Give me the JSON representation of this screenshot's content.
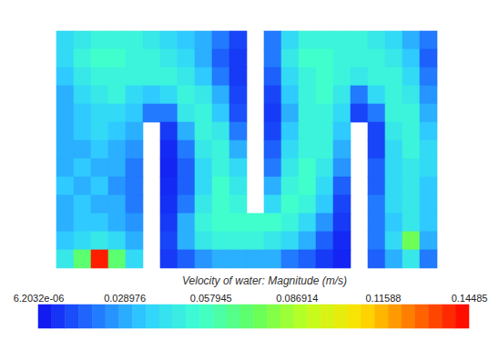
{
  "chart_data": {
    "type": "heatmap",
    "tick_labels": false,
    "z": [
      [
        0.04,
        0.045,
        0.05,
        0.05,
        0.05,
        0.045,
        0.04,
        0.035,
        0.03,
        0.02,
        0.01,
        null,
        0.02,
        0.04,
        0.05,
        0.05,
        0.05,
        0.05,
        0.045,
        0.04,
        0.03,
        0.02
      ],
      [
        0.04,
        0.05,
        0.055,
        0.055,
        0.05,
        0.05,
        0.045,
        0.04,
        0.03,
        0.015,
        0.008,
        null,
        0.02,
        0.045,
        0.055,
        0.055,
        0.05,
        0.05,
        0.05,
        0.045,
        0.035,
        0.015
      ],
      [
        0.035,
        0.045,
        0.05,
        0.05,
        0.05,
        0.05,
        0.05,
        0.045,
        0.035,
        0.02,
        0.008,
        null,
        0.015,
        0.04,
        0.05,
        0.055,
        0.05,
        0.045,
        0.05,
        0.05,
        0.04,
        0.02
      ],
      [
        0.03,
        0.04,
        0.045,
        0.05,
        0.04,
        0.035,
        0.04,
        0.05,
        0.045,
        0.03,
        0.01,
        null,
        0.01,
        0.035,
        0.05,
        0.055,
        0.045,
        0.02,
        0.04,
        0.05,
        0.045,
        0.025
      ],
      [
        0.03,
        0.035,
        0.04,
        0.04,
        0.035,
        0.02,
        0.02,
        0.045,
        0.05,
        0.035,
        0.012,
        null,
        0.008,
        0.03,
        0.05,
        0.05,
        0.04,
        0.01,
        0.02,
        0.05,
        0.05,
        0.03
      ],
      [
        0.03,
        0.035,
        0.04,
        0.035,
        0.03,
        null,
        0.008,
        0.03,
        0.05,
        0.045,
        0.02,
        null,
        0.01,
        0.035,
        0.05,
        0.05,
        0.035,
        null,
        0.01,
        0.045,
        0.05,
        0.035
      ],
      [
        0.03,
        0.03,
        0.035,
        0.03,
        0.025,
        null,
        0.005,
        0.02,
        0.045,
        0.05,
        0.03,
        null,
        0.015,
        0.04,
        0.05,
        0.05,
        0.03,
        null,
        0.01,
        0.04,
        0.05,
        0.04
      ],
      [
        0.03,
        0.035,
        0.03,
        0.03,
        0.02,
        null,
        0.004,
        0.015,
        0.04,
        0.05,
        0.04,
        null,
        0.02,
        0.045,
        0.055,
        0.045,
        0.025,
        null,
        0.015,
        0.04,
        0.045,
        0.04
      ],
      [
        0.035,
        0.03,
        0.035,
        0.025,
        0.02,
        null,
        0.005,
        0.015,
        0.04,
        0.055,
        0.045,
        null,
        0.03,
        0.05,
        0.055,
        0.04,
        0.015,
        null,
        0.015,
        0.04,
        0.045,
        0.035
      ],
      [
        0.03,
        0.035,
        0.03,
        0.03,
        0.02,
        null,
        0.006,
        0.02,
        0.045,
        0.055,
        0.05,
        null,
        0.04,
        0.055,
        0.05,
        0.035,
        0.01,
        null,
        0.02,
        0.04,
        0.045,
        0.035
      ],
      [
        0.03,
        0.035,
        0.035,
        0.03,
        0.025,
        null,
        0.008,
        0.03,
        0.05,
        0.055,
        0.055,
        0.055,
        0.055,
        0.05,
        0.04,
        0.025,
        0.008,
        null,
        0.02,
        0.035,
        0.045,
        0.035
      ],
      [
        0.035,
        0.04,
        0.045,
        0.04,
        0.03,
        null,
        0.01,
        0.03,
        0.045,
        0.05,
        0.05,
        0.05,
        0.045,
        0.04,
        0.03,
        0.015,
        0.005,
        null,
        0.02,
        0.04,
        0.075,
        0.03
      ],
      [
        0.045,
        0.07,
        0.14,
        0.07,
        0.04,
        null,
        0.008,
        0.015,
        0.025,
        0.03,
        0.03,
        0.03,
        0.03,
        0.02,
        0.015,
        0.008,
        0.004,
        null,
        0.015,
        0.03,
        0.045,
        0.02
      ]
    ],
    "colorbar": {
      "title": "Velocity of water: Magnitude (m/s)",
      "range": [
        6.2032e-06,
        0.14485
      ],
      "ticks": [
        {
          "value": 6.2032e-06,
          "label": "6.2032e-06"
        },
        0.028976,
        0.057945,
        0.086914,
        0.11588,
        0.14485
      ]
    }
  }
}
